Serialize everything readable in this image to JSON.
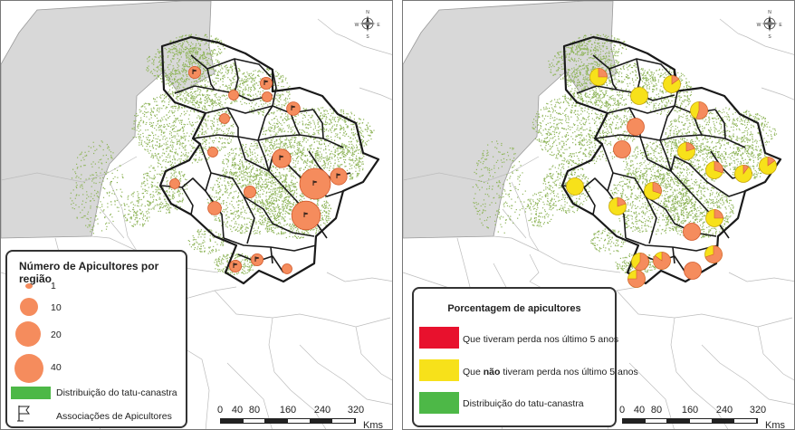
{
  "left_legend": {
    "title": "Número de Apicultores por região",
    "items": [
      {
        "label": "1",
        "value": 1
      },
      {
        "label": "10",
        "value": 10
      },
      {
        "label": "20",
        "value": 20
      },
      {
        "label": "40",
        "value": 40
      }
    ],
    "habitat_label": "Distribuição do tatu-canastra",
    "association_label": "Associações de Apicultores"
  },
  "right_legend": {
    "title": "Porcentagem de apicultores",
    "loss_pre": "Que tiveram perda nos último 5 anos",
    "noloss_pre": "Que ",
    "noloss_bold": "não",
    "noloss_post": " tiveram perda nos último 5 anos",
    "habitat_label": "Distribuição do tatu-canastra"
  },
  "scale_bar": {
    "ticks": [
      "0",
      "40",
      "80",
      "160",
      "240",
      "320"
    ],
    "unit": "Kms"
  },
  "compass": {
    "north": "N",
    "south": "S",
    "east": "E",
    "west": "W"
  },
  "colors": {
    "beekeeper_circle": "#f58c5d",
    "loss": "#e8112d",
    "no_loss": "#f7e11a",
    "habitat": "#4db847",
    "habitat_dots": "#8fb55a",
    "outside_region": "#d8d8d8"
  },
  "left_map_regions": [
    {
      "beekeepers": 2,
      "associations": 1
    },
    {
      "beekeepers": 1,
      "associations": 0
    },
    {
      "beekeepers": 2,
      "associations": 1
    },
    {
      "beekeepers": 1,
      "associations": 0
    },
    {
      "beekeepers": 3,
      "associations": 1
    },
    {
      "beekeepers": 1,
      "associations": 0
    },
    {
      "beekeepers": 1,
      "associations": 0
    },
    {
      "beekeepers": 8,
      "associations": 1
    },
    {
      "beekeepers": 6,
      "associations": 1
    },
    {
      "beekeepers": 30,
      "associations": 1
    },
    {
      "beekeepers": 2,
      "associations": 0
    },
    {
      "beekeepers": 3,
      "associations": 0
    },
    {
      "beekeepers": 1,
      "associations": 0
    },
    {
      "beekeepers": 25,
      "associations": 1
    },
    {
      "beekeepers": 2,
      "associations": 1
    },
    {
      "beekeepers": 2,
      "associations": 1
    },
    {
      "beekeepers": 1,
      "associations": 0
    }
  ],
  "right_map_regions": [
    {
      "loss_pct": 0.25
    },
    {
      "loss_pct": 0.0
    },
    {
      "loss_pct": 0.15
    },
    {
      "loss_pct": 0.55
    },
    {
      "loss_pct": 1.0
    },
    {
      "loss_pct": 1.0
    },
    {
      "loss_pct": 0.2
    },
    {
      "loss_pct": 0.3
    },
    {
      "loss_pct": 0.15
    },
    {
      "loss_pct": 0.1
    },
    {
      "loss_pct": 0.0
    },
    {
      "loss_pct": 0.2
    },
    {
      "loss_pct": 0.3
    },
    {
      "loss_pct": 0.25
    },
    {
      "loss_pct": 1.0
    },
    {
      "loss_pct": 0.6
    },
    {
      "loss_pct": 0.85
    },
    {
      "loss_pct": 0.7
    },
    {
      "loss_pct": 0.75
    },
    {
      "loss_pct": 1.0
    }
  ]
}
